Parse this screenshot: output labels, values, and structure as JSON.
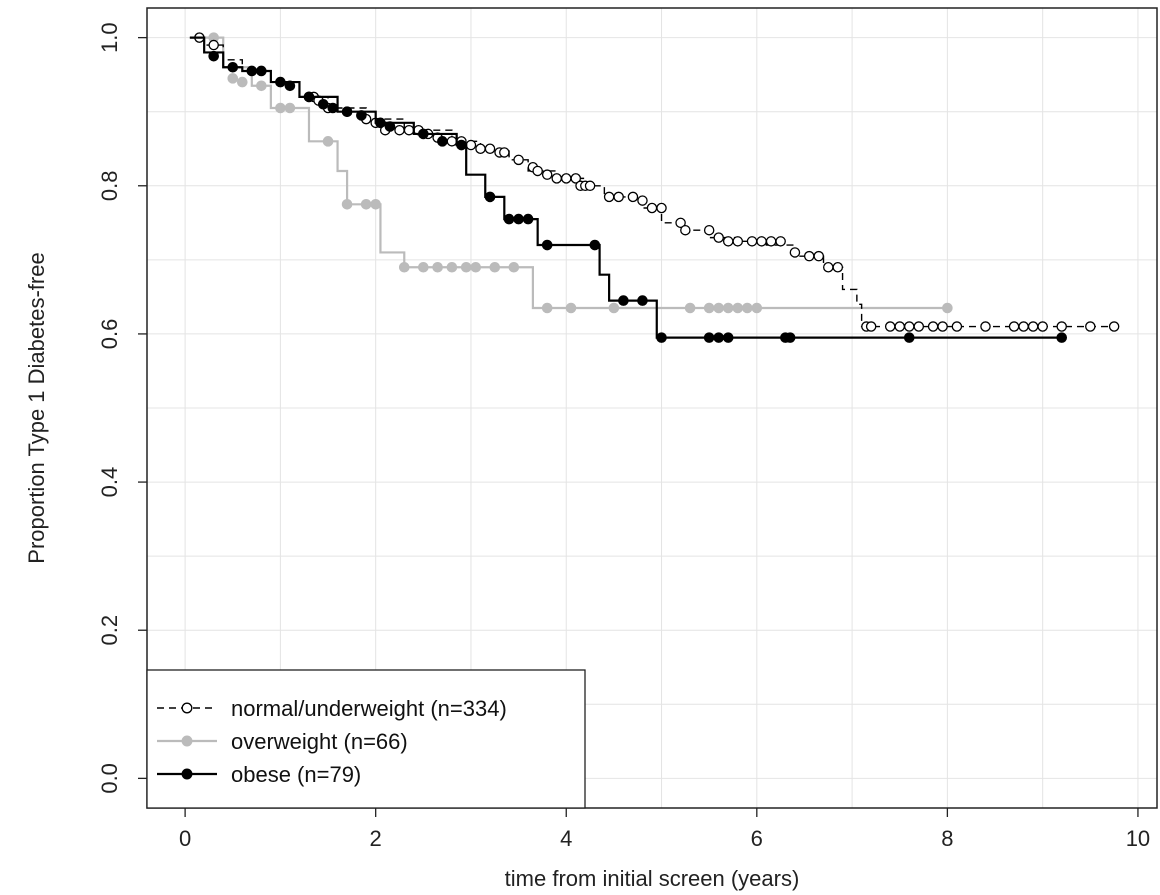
{
  "chart_data": {
    "type": "line",
    "xlabel": "time from initial screen (years)",
    "ylabel": "Proportion Type 1 Diabetes-free",
    "xlim": [
      -0.4,
      10.2
    ],
    "ylim": [
      -0.04,
      1.04
    ],
    "xticks": [
      0,
      2,
      4,
      6,
      8,
      10
    ],
    "yticks": [
      0.0,
      0.2,
      0.4,
      0.6,
      0.8,
      1.0
    ],
    "xtick_labels": [
      "0",
      "2",
      "4",
      "6",
      "8",
      "10"
    ],
    "ytick_labels": [
      "0.0",
      "0.2",
      "0.4",
      "0.6",
      "0.8",
      "1.0"
    ],
    "grid": true,
    "legend_position": "bottom-left",
    "series": [
      {
        "name": "normal/underweight (n=334)",
        "color": "#000000",
        "line_style": "dashed",
        "marker": "open-circle",
        "step_x": [
          0.05,
          0.2,
          0.4,
          0.6,
          0.9,
          1.2,
          1.5,
          1.9,
          2.3,
          2.8,
          3.1,
          3.4,
          3.6,
          3.9,
          4.2,
          4.4,
          4.8,
          5.0,
          5.2,
          5.5,
          5.8,
          6.1,
          6.4,
          6.7,
          6.9,
          7.05,
          7.1,
          9.75
        ],
        "step_y": [
          1.0,
          0.99,
          0.97,
          0.955,
          0.94,
          0.92,
          0.905,
          0.89,
          0.875,
          0.86,
          0.85,
          0.835,
          0.82,
          0.81,
          0.8,
          0.785,
          0.77,
          0.75,
          0.74,
          0.73,
          0.725,
          0.72,
          0.705,
          0.69,
          0.66,
          0.64,
          0.61,
          0.61
        ],
        "censor_x": [
          0.15,
          0.3,
          1.3,
          1.35,
          1.4,
          1.5,
          1.7,
          1.9,
          2.0,
          2.1,
          2.25,
          2.35,
          2.45,
          2.55,
          2.65,
          2.8,
          2.9,
          3.0,
          3.1,
          3.2,
          3.3,
          3.35,
          3.5,
          3.65,
          3.7,
          3.8,
          3.9,
          4.0,
          4.1,
          4.15,
          4.2,
          4.25,
          4.45,
          4.55,
          4.7,
          4.8,
          4.9,
          5.0,
          5.2,
          5.25,
          5.5,
          5.6,
          5.7,
          5.8,
          5.95,
          6.05,
          6.15,
          6.25,
          6.4,
          6.55,
          6.65,
          6.75,
          6.85,
          7.15,
          7.2,
          7.4,
          7.5,
          7.6,
          7.7,
          7.85,
          7.95,
          8.1,
          8.4,
          8.7,
          8.8,
          8.9,
          9.0,
          9.2,
          9.5,
          9.75
        ],
        "censor_y": [
          1.0,
          0.99,
          0.92,
          0.92,
          0.915,
          0.905,
          0.9,
          0.89,
          0.885,
          0.875,
          0.875,
          0.875,
          0.875,
          0.87,
          0.865,
          0.86,
          0.86,
          0.855,
          0.85,
          0.85,
          0.845,
          0.845,
          0.835,
          0.825,
          0.82,
          0.815,
          0.81,
          0.81,
          0.81,
          0.8,
          0.8,
          0.8,
          0.785,
          0.785,
          0.785,
          0.78,
          0.77,
          0.77,
          0.75,
          0.74,
          0.74,
          0.73,
          0.725,
          0.725,
          0.725,
          0.725,
          0.725,
          0.725,
          0.71,
          0.705,
          0.705,
          0.69,
          0.69,
          0.61,
          0.61,
          0.61,
          0.61,
          0.61,
          0.61,
          0.61,
          0.61,
          0.61,
          0.61,
          0.61,
          0.61,
          0.61,
          0.61,
          0.61,
          0.61,
          0.61
        ]
      },
      {
        "name": "overweight (n=66)",
        "color": "#bbbbbb",
        "line_style": "solid",
        "marker": "filled-circle",
        "step_x": [
          0.05,
          0.4,
          0.7,
          0.9,
          1.3,
          1.6,
          1.7,
          2.05,
          2.3,
          3.65,
          3.75,
          8.0
        ],
        "step_y": [
          1.0,
          0.96,
          0.935,
          0.905,
          0.86,
          0.82,
          0.775,
          0.71,
          0.69,
          0.635,
          0.635,
          0.635
        ],
        "censor_x": [
          0.15,
          0.3,
          0.5,
          0.6,
          0.8,
          1.0,
          1.1,
          1.5,
          1.7,
          1.9,
          2.0,
          2.3,
          2.5,
          2.65,
          2.8,
          2.95,
          3.05,
          3.25,
          3.45,
          3.8,
          4.05,
          4.5,
          5.3,
          5.5,
          5.6,
          5.7,
          5.8,
          5.9,
          6.0,
          8.0
        ],
        "censor_y": [
          1.0,
          1.0,
          0.945,
          0.94,
          0.935,
          0.905,
          0.905,
          0.86,
          0.775,
          0.775,
          0.775,
          0.69,
          0.69,
          0.69,
          0.69,
          0.69,
          0.69,
          0.69,
          0.69,
          0.635,
          0.635,
          0.635,
          0.635,
          0.635,
          0.635,
          0.635,
          0.635,
          0.635,
          0.635,
          0.635
        ]
      },
      {
        "name": "obese (n=79)",
        "color": "#000000",
        "line_style": "solid",
        "marker": "filled-circle",
        "step_x": [
          0.05,
          0.2,
          0.4,
          0.6,
          0.9,
          1.2,
          1.6,
          2.0,
          2.4,
          2.85,
          2.95,
          3.15,
          3.35,
          3.7,
          4.3,
          4.35,
          4.45,
          4.95,
          9.2
        ],
        "step_y": [
          1.0,
          0.98,
          0.96,
          0.955,
          0.94,
          0.92,
          0.9,
          0.885,
          0.87,
          0.855,
          0.815,
          0.785,
          0.755,
          0.72,
          0.72,
          0.68,
          0.645,
          0.595,
          0.595
        ],
        "censor_x": [
          0.3,
          0.5,
          0.7,
          0.8,
          1.0,
          1.1,
          1.3,
          1.45,
          1.55,
          1.7,
          1.85,
          2.05,
          2.15,
          2.5,
          2.7,
          2.9,
          3.2,
          3.4,
          3.5,
          3.6,
          3.8,
          4.3,
          4.6,
          4.8,
          5.0,
          5.5,
          5.6,
          5.7,
          6.3,
          6.35,
          7.6,
          9.2
        ],
        "censor_y": [
          0.975,
          0.96,
          0.955,
          0.955,
          0.94,
          0.935,
          0.92,
          0.91,
          0.905,
          0.9,
          0.895,
          0.885,
          0.88,
          0.87,
          0.86,
          0.855,
          0.785,
          0.755,
          0.755,
          0.755,
          0.72,
          0.72,
          0.645,
          0.645,
          0.595,
          0.595,
          0.595,
          0.595,
          0.595,
          0.595,
          0.595,
          0.595
        ]
      }
    ]
  }
}
